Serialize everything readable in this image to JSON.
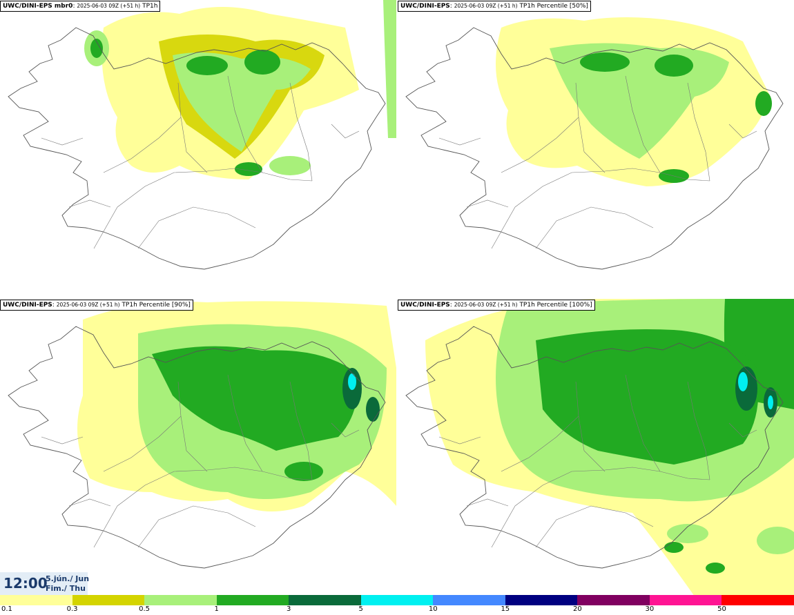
{
  "panels": [
    {
      "model": "UWC/DINI-EPS mbr0",
      "meta": "2025-06-03 09Z (+51 h)",
      "field": "TP1h",
      "level": 0
    },
    {
      "model": "UWC/DINI-EPS",
      "meta": "2025-06-03 09Z (+51 h)",
      "field": "TP1h Percentile [50%]",
      "level": 1
    },
    {
      "model": "UWC/DINI-EPS",
      "meta": "2025-06-03 09Z (+51 h)",
      "field": "TP1h Percentile [90%]",
      "level": 2
    },
    {
      "model": "UWC/DINI-EPS",
      "meta": "2025-06-03 09Z (+51 h)",
      "field": "TP1h Percentile [100%]",
      "level": 3
    }
  ],
  "valid_time": {
    "time": "12:00",
    "date_line1": "5.jún./ Jun",
    "date_line2": "Fim./ Thu"
  },
  "legend": {
    "colors": [
      "#ffff99",
      "#d4d400",
      "#a8f07a",
      "#22aa22",
      "#0a6a3a",
      "#00f0f0",
      "#4488ff",
      "#000080",
      "#800060",
      "#ff1493",
      "#ff0000"
    ],
    "ticks": [
      "0.1",
      "0.3",
      "0.5",
      "1",
      "3",
      "5",
      "10",
      "15",
      "20",
      "30",
      "50"
    ]
  }
}
